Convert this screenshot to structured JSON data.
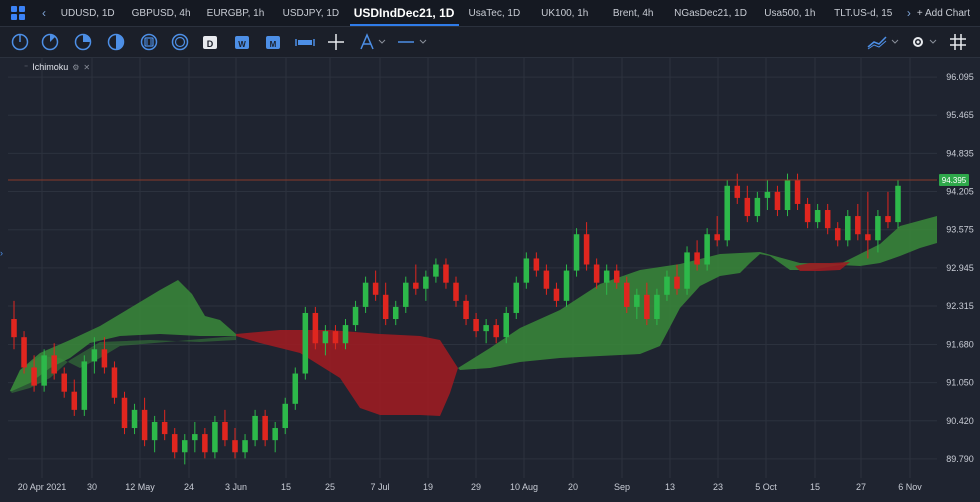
{
  "tabbar": {
    "tabs": [
      "UDUSD, 1D",
      "GBPUSD, 4h",
      "EURGBP, 1h",
      "USDJPY, 1D",
      "USDIndDec21, 1D",
      "UsaTec, 1D",
      "UK100, 1h",
      "Brent, 4h",
      "NGasDec21, 1D",
      "Usa500, 1h",
      "TLT.US-d, 15"
    ],
    "active_index": 4,
    "add_chart": "+ Add Chart"
  },
  "toolbar": {
    "icons": [
      "timeframe-1-icon",
      "timeframe-2-icon",
      "timeframe-3-icon",
      "timeframe-4-icon",
      "timeframe-5-icon",
      "timeframe-6-icon",
      "day-calendar-icon",
      "week-calendar-icon",
      "month-calendar-icon",
      "range-icon",
      "crosshair-icon",
      "drawing-tools-icon",
      "line-style-icon",
      "chart-type-icon",
      "settings-icon",
      "grid-icon"
    ],
    "day_letter": "D",
    "week_letter": "W",
    "month_letter": "M"
  },
  "indicator": {
    "name": "Ichimoku"
  },
  "colors": {
    "background": "#1f2430",
    "bull": "#2db84a",
    "bear": "#e0261f",
    "cloud_bull": "#3a8a3a",
    "cloud_bear": "#9b1c22",
    "price_line": "#8a3a2a",
    "price_tag": "#2ea84a"
  },
  "chart_data": {
    "type": "candlestick",
    "symbol": "USDIndDec21",
    "timeframe": "1D",
    "y_ticks": [
      "96.095",
      "95.465",
      "94.835",
      "94.205",
      "93.575",
      "92.945",
      "92.315",
      "91.680",
      "91.050",
      "90.420",
      "89.790"
    ],
    "ylim": [
      89.475,
      96.41
    ],
    "x_ticks": [
      "20 Apr 2021",
      "30",
      "12 May",
      "24",
      "3 Jun",
      "15",
      "25",
      "7 Jul",
      "19",
      "29",
      "10 Aug",
      "20",
      "Sep",
      "13",
      "23",
      "5 Oct",
      "15",
      "27",
      "6 Nov"
    ],
    "current_price": "94.395",
    "current_price_value": 94.395,
    "ohlc_approx": [
      [
        92.1,
        92.4,
        91.6,
        91.8
      ],
      [
        91.8,
        91.9,
        91.2,
        91.3
      ],
      [
        91.3,
        91.5,
        90.9,
        91.0
      ],
      [
        91.0,
        91.6,
        90.9,
        91.5
      ],
      [
        91.5,
        91.7,
        91.1,
        91.2
      ],
      [
        91.2,
        91.3,
        90.8,
        90.9
      ],
      [
        90.9,
        91.1,
        90.5,
        90.6
      ],
      [
        90.6,
        91.5,
        90.5,
        91.4
      ],
      [
        91.4,
        91.8,
        91.2,
        91.6
      ],
      [
        91.6,
        91.8,
        91.2,
        91.3
      ],
      [
        91.3,
        91.4,
        90.7,
        90.8
      ],
      [
        90.8,
        90.9,
        90.2,
        90.3
      ],
      [
        90.3,
        90.7,
        90.2,
        90.6
      ],
      [
        90.6,
        90.8,
        90.0,
        90.1
      ],
      [
        90.1,
        90.5,
        89.9,
        90.4
      ],
      [
        90.4,
        90.6,
        90.1,
        90.2
      ],
      [
        90.2,
        90.3,
        89.8,
        89.9
      ],
      [
        89.9,
        90.2,
        89.7,
        90.1
      ],
      [
        90.1,
        90.4,
        89.9,
        90.2
      ],
      [
        90.2,
        90.3,
        89.8,
        89.9
      ],
      [
        89.9,
        90.5,
        89.8,
        90.4
      ],
      [
        90.4,
        90.6,
        90.0,
        90.1
      ],
      [
        90.1,
        90.3,
        89.8,
        89.9
      ],
      [
        89.9,
        90.2,
        89.8,
        90.1
      ],
      [
        90.1,
        90.6,
        90.0,
        90.5
      ],
      [
        90.5,
        90.6,
        90.0,
        90.1
      ],
      [
        90.1,
        90.4,
        89.9,
        90.3
      ],
      [
        90.3,
        90.8,
        90.2,
        90.7
      ],
      [
        90.7,
        91.3,
        90.6,
        91.2
      ],
      [
        91.2,
        92.3,
        91.1,
        92.2
      ],
      [
        92.2,
        92.3,
        91.6,
        91.7
      ],
      [
        91.7,
        92.0,
        91.5,
        91.9
      ],
      [
        91.9,
        92.0,
        91.6,
        91.7
      ],
      [
        91.7,
        92.1,
        91.6,
        92.0
      ],
      [
        92.0,
        92.4,
        91.9,
        92.3
      ],
      [
        92.3,
        92.8,
        92.2,
        92.7
      ],
      [
        92.7,
        92.9,
        92.4,
        92.5
      ],
      [
        92.5,
        92.7,
        92.0,
        92.1
      ],
      [
        92.1,
        92.4,
        92.0,
        92.3
      ],
      [
        92.3,
        92.8,
        92.2,
        92.7
      ],
      [
        92.7,
        93.0,
        92.5,
        92.6
      ],
      [
        92.6,
        92.9,
        92.4,
        92.8
      ],
      [
        92.8,
        93.1,
        92.7,
        93.0
      ],
      [
        93.0,
        93.1,
        92.6,
        92.7
      ],
      [
        92.7,
        92.8,
        92.3,
        92.4
      ],
      [
        92.4,
        92.5,
        92.0,
        92.1
      ],
      [
        92.1,
        92.2,
        91.8,
        91.9
      ],
      [
        91.9,
        92.1,
        91.7,
        92.0
      ],
      [
        92.0,
        92.1,
        91.7,
        91.8
      ],
      [
        91.8,
        92.3,
        91.7,
        92.2
      ],
      [
        92.2,
        92.8,
        92.1,
        92.7
      ],
      [
        92.7,
        93.2,
        92.6,
        93.1
      ],
      [
        93.1,
        93.2,
        92.8,
        92.9
      ],
      [
        92.9,
        93.0,
        92.5,
        92.6
      ],
      [
        92.6,
        92.7,
        92.3,
        92.4
      ],
      [
        92.4,
        93.0,
        92.3,
        92.9
      ],
      [
        92.9,
        93.6,
        92.8,
        93.5
      ],
      [
        93.5,
        93.7,
        92.9,
        93.0
      ],
      [
        93.0,
        93.1,
        92.6,
        92.7
      ],
      [
        92.7,
        93.0,
        92.5,
        92.9
      ],
      [
        92.9,
        93.0,
        92.6,
        92.7
      ],
      [
        92.7,
        92.8,
        92.2,
        92.3
      ],
      [
        92.3,
        92.6,
        92.1,
        92.5
      ],
      [
        92.5,
        92.7,
        92.0,
        92.1
      ],
      [
        92.1,
        92.6,
        92.0,
        92.5
      ],
      [
        92.5,
        92.9,
        92.4,
        92.8
      ],
      [
        92.8,
        93.0,
        92.5,
        92.6
      ],
      [
        92.6,
        93.3,
        92.5,
        93.2
      ],
      [
        93.2,
        93.4,
        92.9,
        93.0
      ],
      [
        93.0,
        93.6,
        92.9,
        93.5
      ],
      [
        93.5,
        93.8,
        93.3,
        93.4
      ],
      [
        93.4,
        94.4,
        93.3,
        94.3
      ],
      [
        94.3,
        94.5,
        94.0,
        94.1
      ],
      [
        94.1,
        94.3,
        93.7,
        93.8
      ],
      [
        93.8,
        94.2,
        93.7,
        94.1
      ],
      [
        94.1,
        94.4,
        93.9,
        94.2
      ],
      [
        94.2,
        94.3,
        93.8,
        93.9
      ],
      [
        93.9,
        94.5,
        93.8,
        94.4
      ],
      [
        94.4,
        94.5,
        93.9,
        94.0
      ],
      [
        94.0,
        94.1,
        93.6,
        93.7
      ],
      [
        93.7,
        94.0,
        93.6,
        93.9
      ],
      [
        93.9,
        94.0,
        93.5,
        93.6
      ],
      [
        93.6,
        93.7,
        93.3,
        93.4
      ],
      [
        93.4,
        93.9,
        93.3,
        93.8
      ],
      [
        93.8,
        94.0,
        93.4,
        93.5
      ],
      [
        93.5,
        94.2,
        93.1,
        93.4
      ],
      [
        93.4,
        93.9,
        93.2,
        93.8
      ],
      [
        93.8,
        94.2,
        93.6,
        93.7
      ],
      [
        93.7,
        94.4,
        93.6,
        94.3
      ]
    ]
  }
}
